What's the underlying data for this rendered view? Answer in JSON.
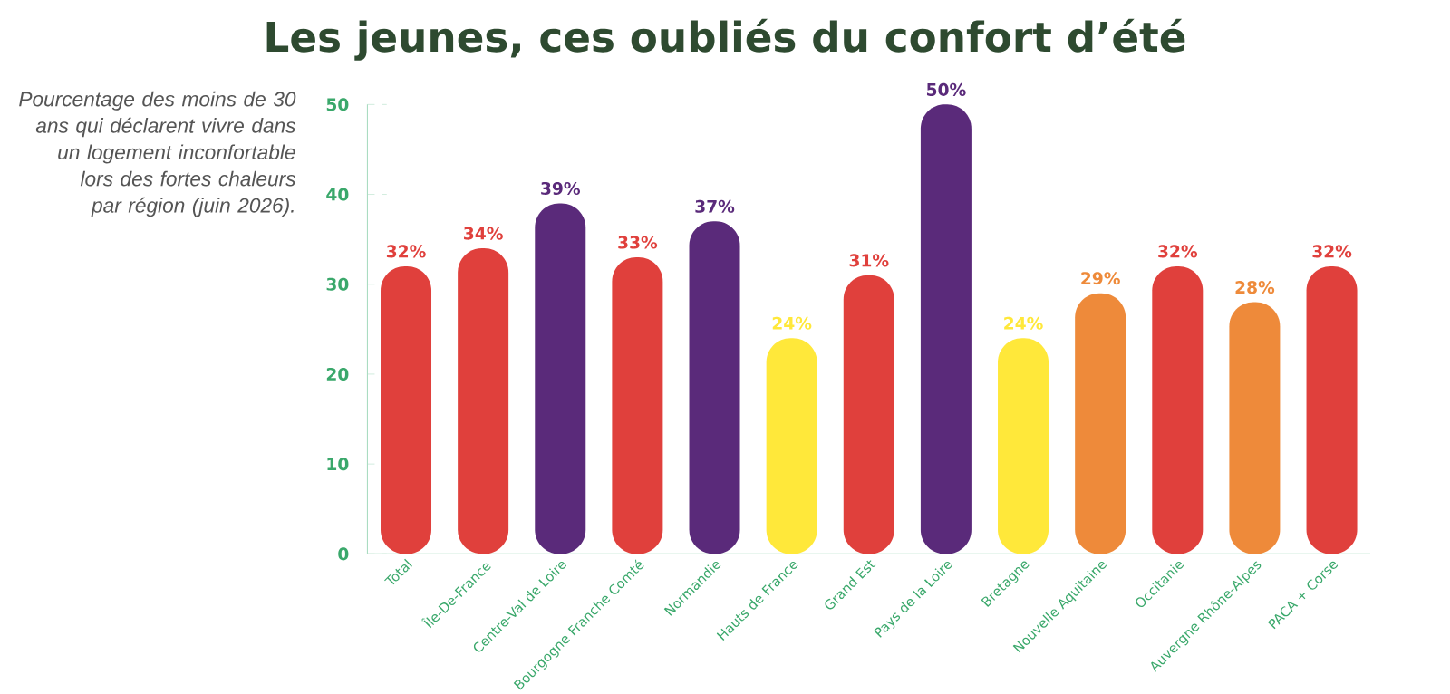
{
  "chart_data": {
    "type": "bar",
    "title": "Les jeunes, ces oubliés du confort d’été",
    "subtitle": "Pourcentage des moins de 30 ans qui déclarent vivre dans un logement inconfortable lors des fortes chaleurs par région (juin 2026).",
    "categories": [
      "Total",
      "Île-De-France",
      "Centre-Val de Loire",
      "Bourgogne Franche Comté",
      "Normandie",
      "Hauts de France",
      "Grand Est",
      "Pays de la Loire",
      "Bretagne",
      "Nouvelle Aquitaine",
      "Occitanie",
      "Auvergne Rhône-Alpes",
      "PACA + Corse"
    ],
    "values": [
      32,
      34,
      39,
      33,
      37,
      24,
      31,
      50,
      24,
      29,
      32,
      28,
      32
    ],
    "colors": [
      "#e0403c",
      "#e0403c",
      "#5a2a7a",
      "#e0403c",
      "#5a2a7a",
      "#ffe83a",
      "#e0403c",
      "#5a2a7a",
      "#ffe83a",
      "#ee8a3a",
      "#e0403c",
      "#ee8a3a",
      "#e0403c"
    ],
    "value_labels": [
      "32%",
      "34%",
      "39%",
      "33%",
      "37%",
      "24%",
      "31%",
      "50%",
      "24%",
      "29%",
      "32%",
      "28%",
      "32%"
    ],
    "ylim": [
      0,
      50
    ],
    "yticks": [
      0,
      10,
      20,
      30,
      40,
      50
    ]
  }
}
